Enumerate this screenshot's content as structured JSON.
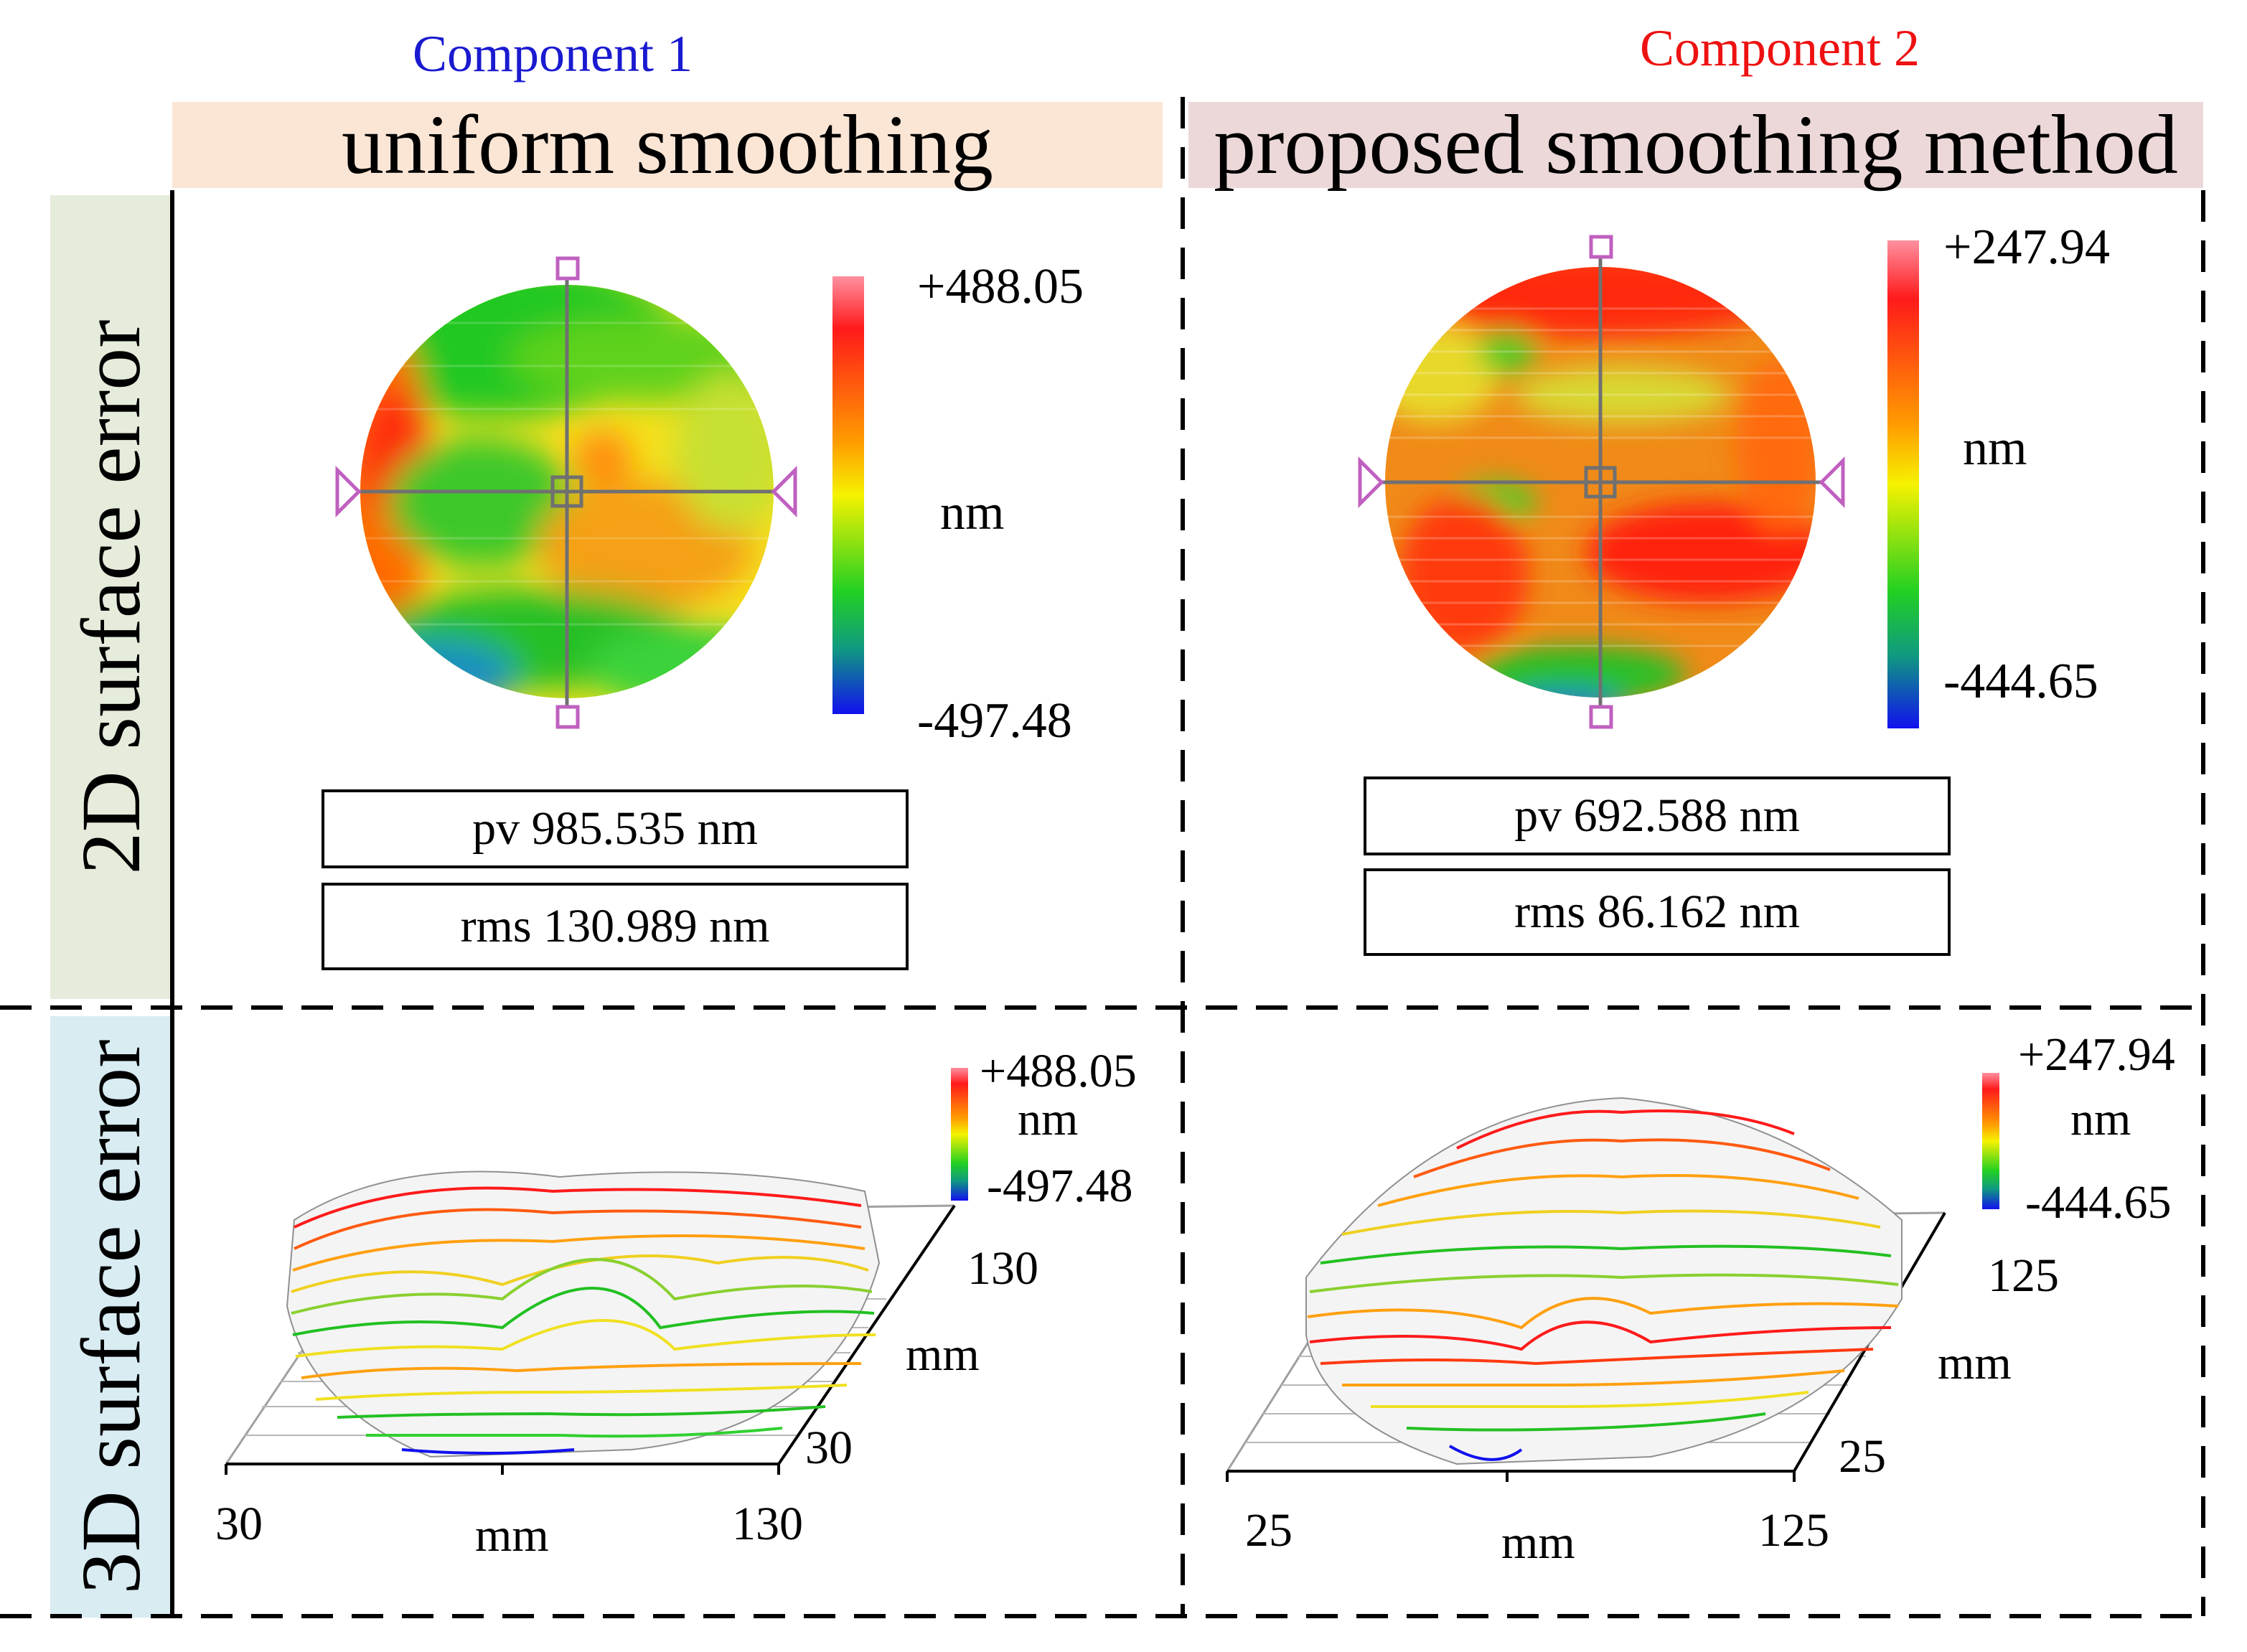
{
  "component1": {
    "label": "Component 1",
    "label_color": "#1a1ad0",
    "title": "uniform smoothing",
    "title_bg": "#fbe6d6",
    "colorbar_2d": {
      "max": "+488.05",
      "unit": "nm",
      "min": "-497.48"
    },
    "pv": "pv 985.535 nm",
    "rms": "rms 130.989 nm",
    "colorbar_3d": {
      "max": "+488.05",
      "unit": "nm",
      "min": "-497.48"
    },
    "axis_x": {
      "min": "30",
      "max": "130",
      "unit": "mm"
    },
    "axis_y": {
      "min": "30",
      "max": "130",
      "unit": "mm"
    }
  },
  "component2": {
    "label": "Component 2",
    "label_color": "#ee1111",
    "title": "proposed smoothing method",
    "title_bg": "#ecd8d8",
    "colorbar_2d": {
      "max": "+247.94",
      "unit": "nm",
      "min": "-444.65"
    },
    "pv": "pv 692.588 nm",
    "rms": "rms 86.162 nm",
    "colorbar_3d": {
      "max": "+247.94",
      "unit": "nm",
      "min": "-444.65"
    },
    "axis_x": {
      "min": "25",
      "max": "125",
      "unit": "mm"
    },
    "axis_y": {
      "min": "25",
      "max": "125",
      "unit": "mm"
    }
  },
  "rows": {
    "row1": {
      "label": "2D surface error",
      "bg": "#e5ecdb"
    },
    "row2": {
      "label": "3D surface error",
      "bg": "#d8ecf2"
    }
  },
  "colors": {
    "red": "#ff1a1a",
    "orange": "#ff9d00",
    "yellow": "#f5f200",
    "green": "#22d022",
    "blue": "#1111ee"
  }
}
